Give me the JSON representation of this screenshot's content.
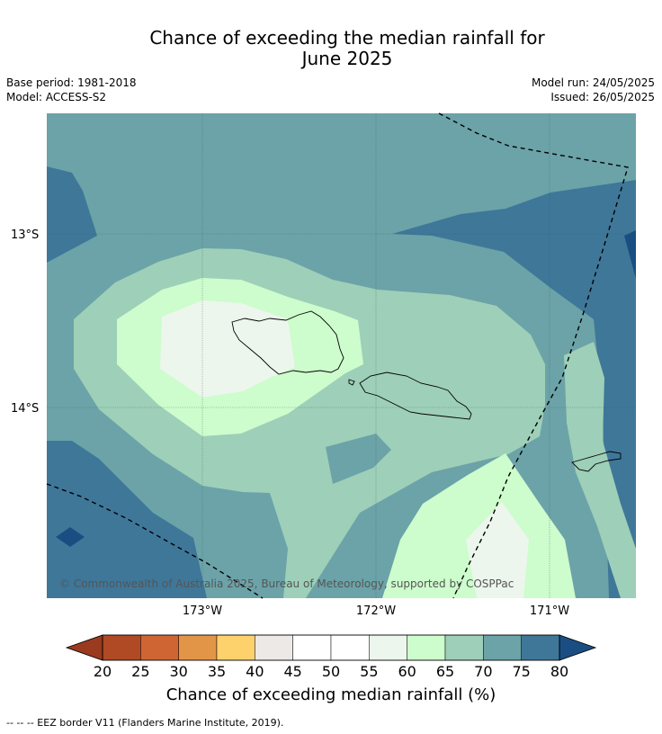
{
  "title_line1": "Chance of exceeding the median rainfall for",
  "title_line2": "June 2025",
  "meta_left": {
    "base_period": "Base period: 1981-2018",
    "model": "Model: ACCESS-S2"
  },
  "meta_right": {
    "model_run": "Model run: 24/05/2025",
    "issued": "Issued: 26/05/2025"
  },
  "map": {
    "lat_labels": [
      "13°S",
      "14°S"
    ],
    "lon_labels": [
      "173°W",
      "172°W",
      "171°W"
    ],
    "copyright": "© Commonwealth of Australia 2025, Bureau of Meteorology, supported by COSPPac"
  },
  "colorbar": {
    "ticks": [
      "20",
      "25",
      "30",
      "35",
      "40",
      "45",
      "50",
      "55",
      "60",
      "65",
      "70",
      "75",
      "80"
    ],
    "colors": [
      "#b04a25",
      "#cf6533",
      "#e39547",
      "#fdd16c",
      "#ece9e6",
      "#ffffff",
      "#ffffff",
      "#ecf6ec",
      "#cdfccd",
      "#9ecfb8",
      "#6ba3a8",
      "#3f7799"
    ],
    "low_color": "#9a3a1f",
    "high_color": "#1a4e82",
    "label": "Chance of exceeding median rainfall (%)"
  },
  "footer": "--  --  -- EEZ border V11 (Flanders Marine Institute, 2019)."
}
